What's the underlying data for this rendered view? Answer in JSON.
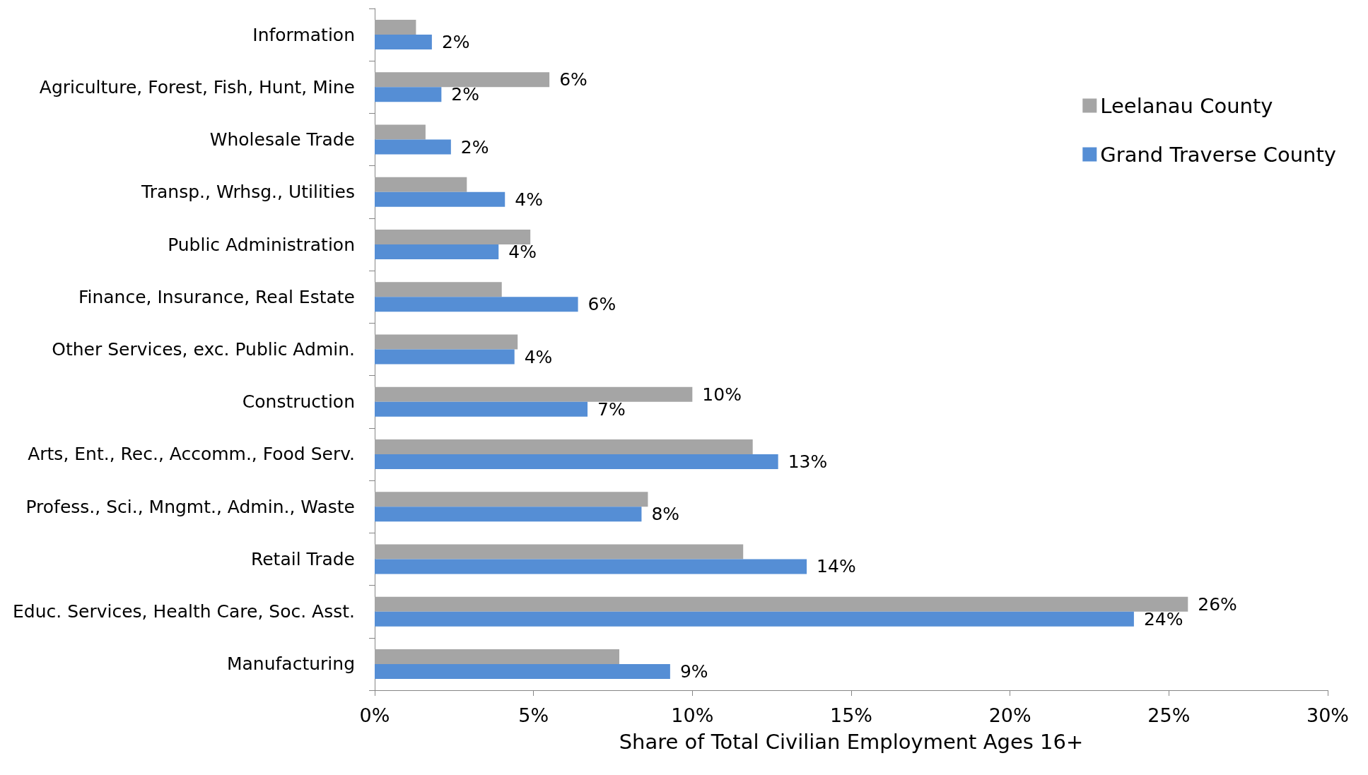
{
  "chart_data": {
    "type": "bar",
    "orientation": "horizontal",
    "xlabel": "Share of Total Civilian Employment Ages 16+",
    "categories": [
      "Information",
      "Agriculture, Forest, Fish, Hunt, Mine",
      "Wholesale Trade",
      "Transp., Wrhsg., Utilities",
      "Public Administration",
      "Finance, Insurance, Real Estate",
      "Other Services, exc. Public Admin.",
      "Construction",
      "Arts, Ent., Rec., Accomm., Food Serv.",
      "Profess., Sci., Mngmt., Admin., Waste",
      "Retail Trade",
      "Educ. Services, Health Care, Soc. Asst.",
      "Manufacturing"
    ],
    "series": [
      {
        "name": "Leelanau County",
        "color": "#a5a5a5",
        "values": [
          1.3,
          5.5,
          1.6,
          2.9,
          4.9,
          4.0,
          4.5,
          10.0,
          11.9,
          8.6,
          11.6,
          25.6,
          7.7
        ],
        "value_labels": [
          null,
          "6%",
          null,
          null,
          null,
          null,
          null,
          "10%",
          null,
          null,
          null,
          "26%",
          null
        ]
      },
      {
        "name": "Grand Traverse County",
        "color": "#558ed5",
        "values": [
          1.8,
          2.1,
          2.4,
          4.1,
          3.9,
          6.4,
          4.4,
          6.7,
          12.7,
          8.4,
          13.6,
          23.9,
          9.3
        ],
        "value_labels": [
          "2%",
          "2%",
          "2%",
          "4%",
          "4%",
          "6%",
          "4%",
          "7%",
          "13%",
          "8%",
          "14%",
          "24%",
          "9%"
        ]
      }
    ],
    "xlim": [
      0,
      30
    ],
    "xticks": [
      {
        "value": 0,
        "label": "0%"
      },
      {
        "value": 5,
        "label": "5%"
      },
      {
        "value": 10,
        "label": "10%"
      },
      {
        "value": 15,
        "label": "15%"
      },
      {
        "value": 20,
        "label": "20%"
      },
      {
        "value": 25,
        "label": "25%"
      },
      {
        "value": 30,
        "label": "30%"
      }
    ],
    "grid": false,
    "legend": "right"
  }
}
